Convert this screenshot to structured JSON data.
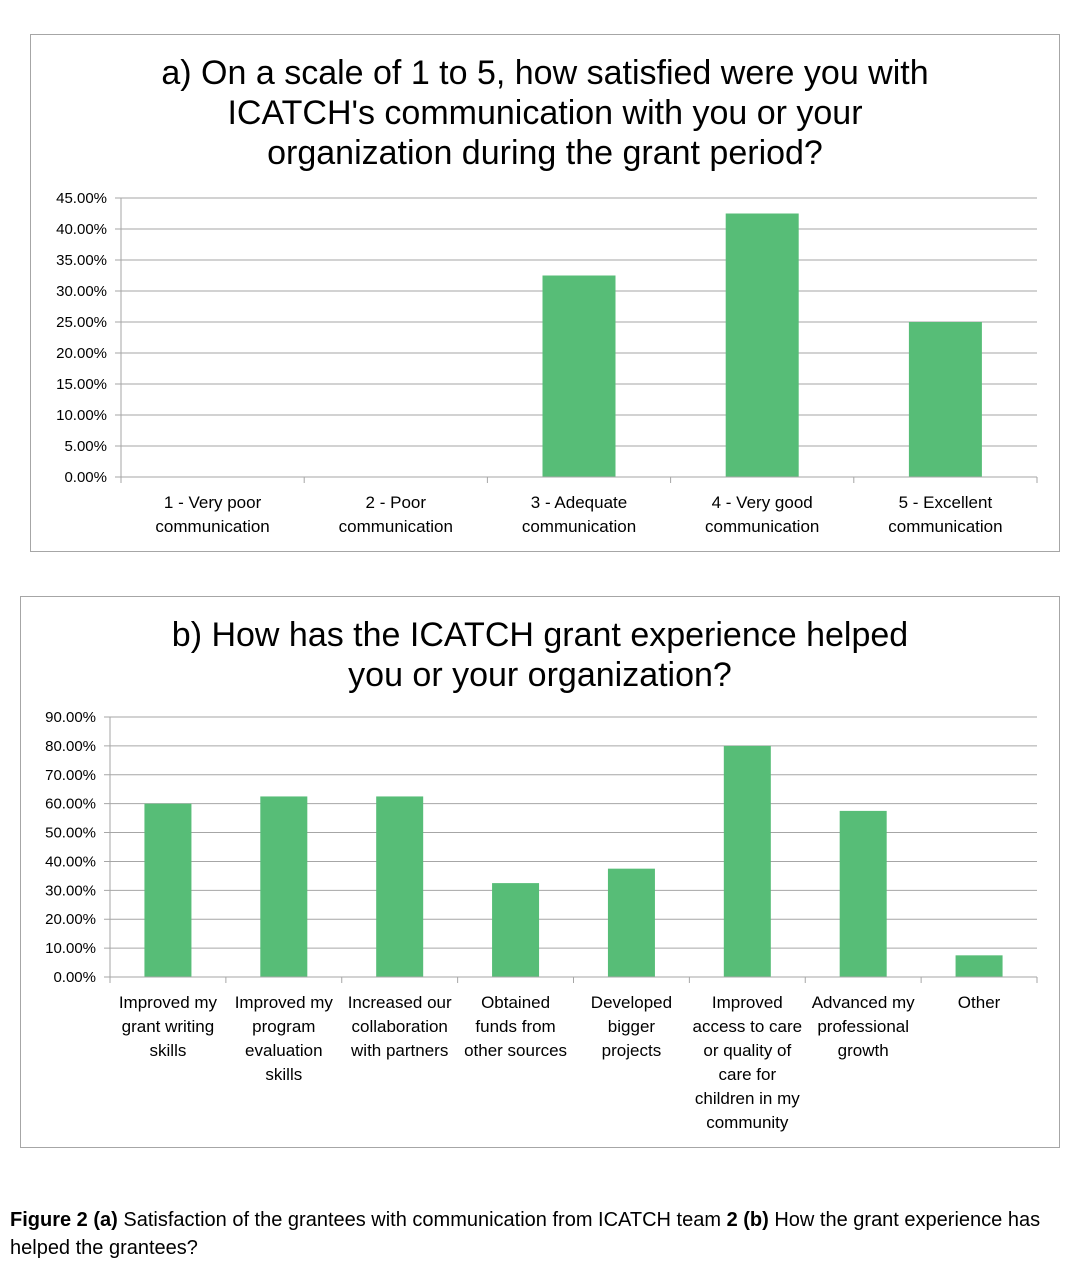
{
  "chart_data": [
    {
      "type": "bar",
      "title": "a) On a scale of 1 to 5, how satisfied were you with\nICATCH's communication with you or your\norganization during the grant period?",
      "categories": [
        [
          "1 - Very poor",
          "communication"
        ],
        [
          "2 - Poor",
          "communication"
        ],
        [
          "3 - Adequate",
          "communication"
        ],
        [
          "4 - Very good",
          "communication"
        ],
        [
          "5 - Excellent",
          "communication"
        ]
      ],
      "values": [
        0,
        0,
        32.5,
        42.5,
        25.0
      ],
      "ylim": [
        0,
        45
      ],
      "yticks": [
        "0.00%",
        "5.00%",
        "10.00%",
        "15.00%",
        "20.00%",
        "25.00%",
        "30.00%",
        "35.00%",
        "40.00%",
        "45.00%"
      ],
      "ytick_values": [
        0,
        5,
        10,
        15,
        20,
        25,
        30,
        35,
        40,
        45
      ],
      "grid": true,
      "bar_color": "#57bd77"
    },
    {
      "type": "bar",
      "title": "b) How has the ICATCH grant experience helped\nyou or your organization?",
      "categories": [
        [
          "Improved my",
          "grant writing",
          "skills"
        ],
        [
          "Improved my",
          "program",
          "evaluation",
          "skills"
        ],
        [
          "Increased our",
          "collaboration",
          "with partners"
        ],
        [
          "Obtained",
          "funds from",
          "other sources"
        ],
        [
          "Developed",
          "bigger",
          "projects"
        ],
        [
          "Improved",
          "access to care",
          "or quality of",
          "care for",
          "children in my",
          "community"
        ],
        [
          "Advanced my",
          "professional",
          "growth"
        ],
        [
          "Other"
        ]
      ],
      "values": [
        60.0,
        62.5,
        62.5,
        32.5,
        37.5,
        80.0,
        57.5,
        7.5
      ],
      "ylim": [
        0,
        90
      ],
      "yticks": [
        "0.00%",
        "10.00%",
        "20.00%",
        "30.00%",
        "40.00%",
        "50.00%",
        "60.00%",
        "70.00%",
        "80.00%",
        "90.00%"
      ],
      "ytick_values": [
        0,
        10,
        20,
        30,
        40,
        50,
        60,
        70,
        80,
        90
      ],
      "grid": true,
      "bar_color": "#57bd77"
    }
  ],
  "caption": {
    "fig_label": "Figure 2",
    "part_a_label": "(a)",
    "part_a_text": " Satisfaction of the grantees with communication from ICATCH team ",
    "part_b_label": "2 (b)",
    "part_b_text": " How the grant experience has helped the grantees?"
  }
}
